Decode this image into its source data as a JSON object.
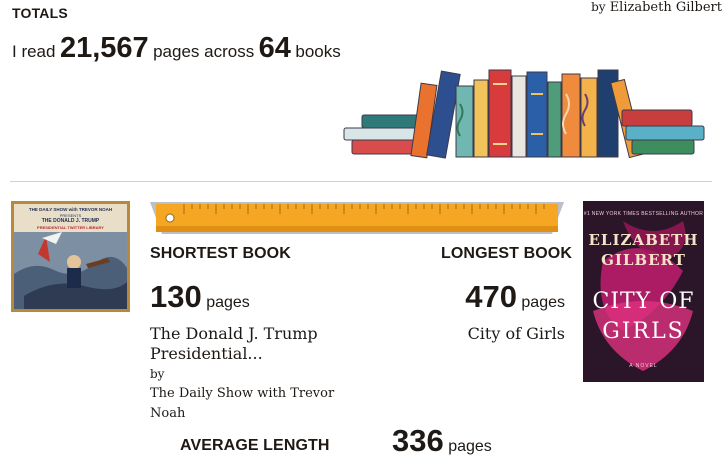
{
  "totals": {
    "heading": "TOTALS",
    "prefix": "I read",
    "pages": "21,567",
    "middle": "pages across",
    "books": "64",
    "suffix": "books"
  },
  "shortest": {
    "label": "SHORTEST BOOK",
    "pages": "130",
    "unit": "pages",
    "title": "The Donald J. Trump Presidential...",
    "by": "by",
    "author": "The Daily Show with Trevor Noah",
    "cover": {
      "line1": "THE DAILY SHOW with TREVOR NOAH",
      "line2": "PRESENTS",
      "line3": "THE DONALD J. TRUMP",
      "line4": "PRESIDENTIAL TWITTER LIBRARY"
    }
  },
  "longest": {
    "label": "LONGEST BOOK",
    "pages": "470",
    "unit": "pages",
    "title": "City of Girls",
    "by": "by",
    "author": "Elizabeth Gilbert",
    "cover": {
      "tagline": "#1 NEW YORK TIMES BESTSELLING AUTHOR",
      "author_first": "ELIZABETH",
      "author_last": "GILBERT",
      "title_line1": "CITY OF",
      "title_line2": "GIRLS",
      "note": "A NOVEL"
    }
  },
  "average": {
    "label": "AVERAGE LENGTH",
    "pages": "336",
    "unit": "pages"
  },
  "colors": {
    "ruler": "#f5a623",
    "ruler_edge": "#b9c0c8",
    "divider": "#d6d0c4",
    "cover_frame": "#b8893b"
  }
}
